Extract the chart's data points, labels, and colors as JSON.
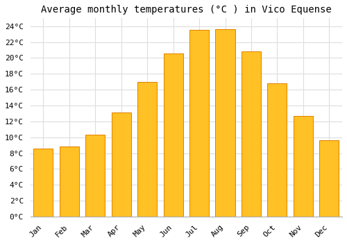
{
  "title": "Average monthly temperatures (°C ) in Vico Equense",
  "months": [
    "Jan",
    "Feb",
    "Mar",
    "Apr",
    "May",
    "Jun",
    "Jul",
    "Aug",
    "Sep",
    "Oct",
    "Nov",
    "Dec"
  ],
  "temperatures": [
    8.6,
    8.8,
    10.3,
    13.1,
    17.0,
    20.6,
    23.5,
    23.6,
    20.8,
    16.8,
    12.7,
    9.6
  ],
  "bar_color": "#FFC125",
  "bar_edge_color": "#E08000",
  "background_color": "#FFFFFF",
  "plot_bg_color": "#FFFFFF",
  "grid_color": "#DDDDDD",
  "ylim": [
    0,
    25
  ],
  "ytick_max": 24,
  "ytick_step": 2,
  "title_fontsize": 10,
  "tick_fontsize": 8,
  "font_family": "monospace"
}
